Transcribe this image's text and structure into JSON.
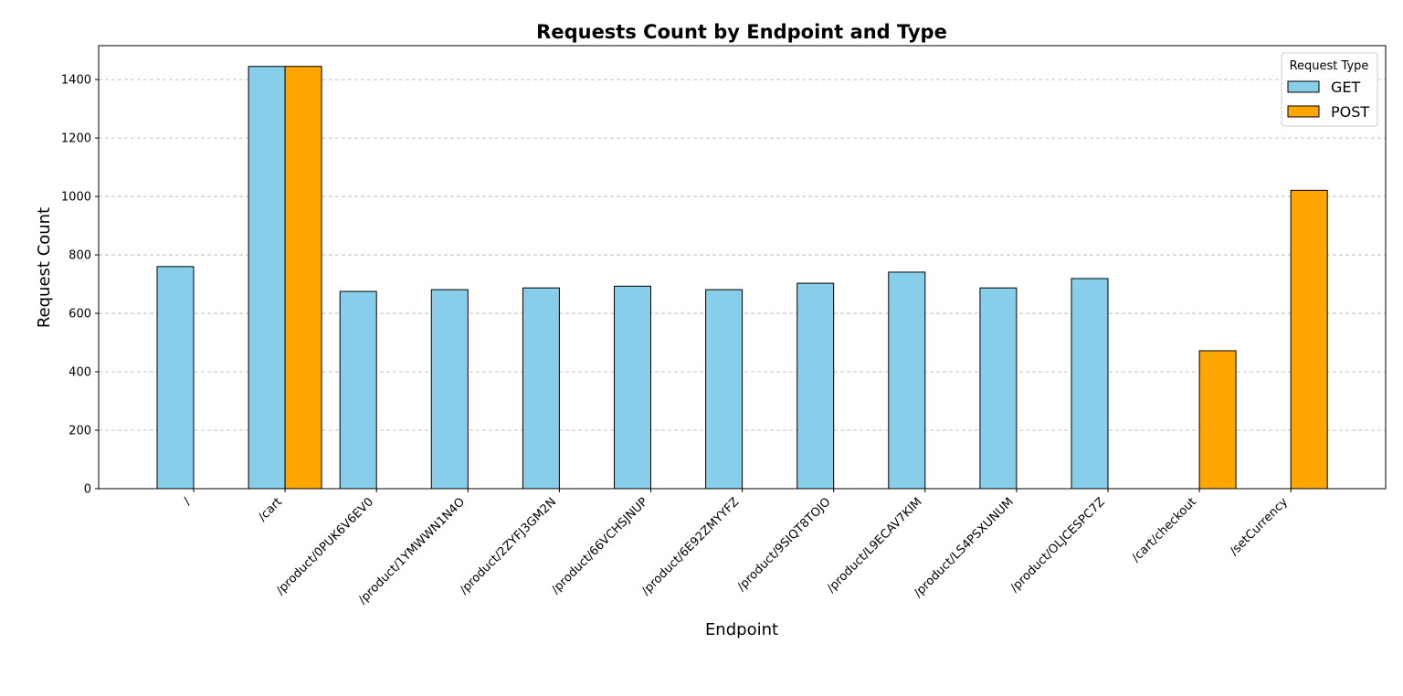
{
  "chart_data": {
    "type": "bar",
    "title": "Requests Count by Endpoint and Type",
    "xlabel": "Endpoint",
    "ylabel": "Request Count",
    "categories": [
      "/",
      "/cart",
      "/product/0PUK6V6EV0",
      "/product/1YMWWN1N4O",
      "/product/2ZYFJ3GM2N",
      "/product/66VCHSJNUP",
      "/product/6E92ZMYYFZ",
      "/product/9SIQT8TOJO",
      "/product/L9ECAV7KIM",
      "/product/LS4PSXUNUM",
      "/product/OLJCESPC7Z",
      "/cart/checkout",
      "/setCurrency"
    ],
    "series": [
      {
        "name": "GET",
        "color": "#87CEEB",
        "values": [
          760,
          1445,
          675,
          681,
          687,
          693,
          681,
          703,
          741,
          687,
          719,
          0,
          0
        ]
      },
      {
        "name": "POST",
        "color": "#FFA500",
        "values": [
          0,
          1445,
          0,
          0,
          0,
          0,
          0,
          0,
          0,
          0,
          0,
          472,
          1021
        ]
      }
    ],
    "ylim": [
      0,
      1516
    ],
    "yticks": [
      0,
      200,
      400,
      600,
      800,
      1000,
      1200,
      1400
    ],
    "grid": "y-dashed",
    "legend": {
      "title": "Request Type",
      "position": "top-right"
    }
  }
}
